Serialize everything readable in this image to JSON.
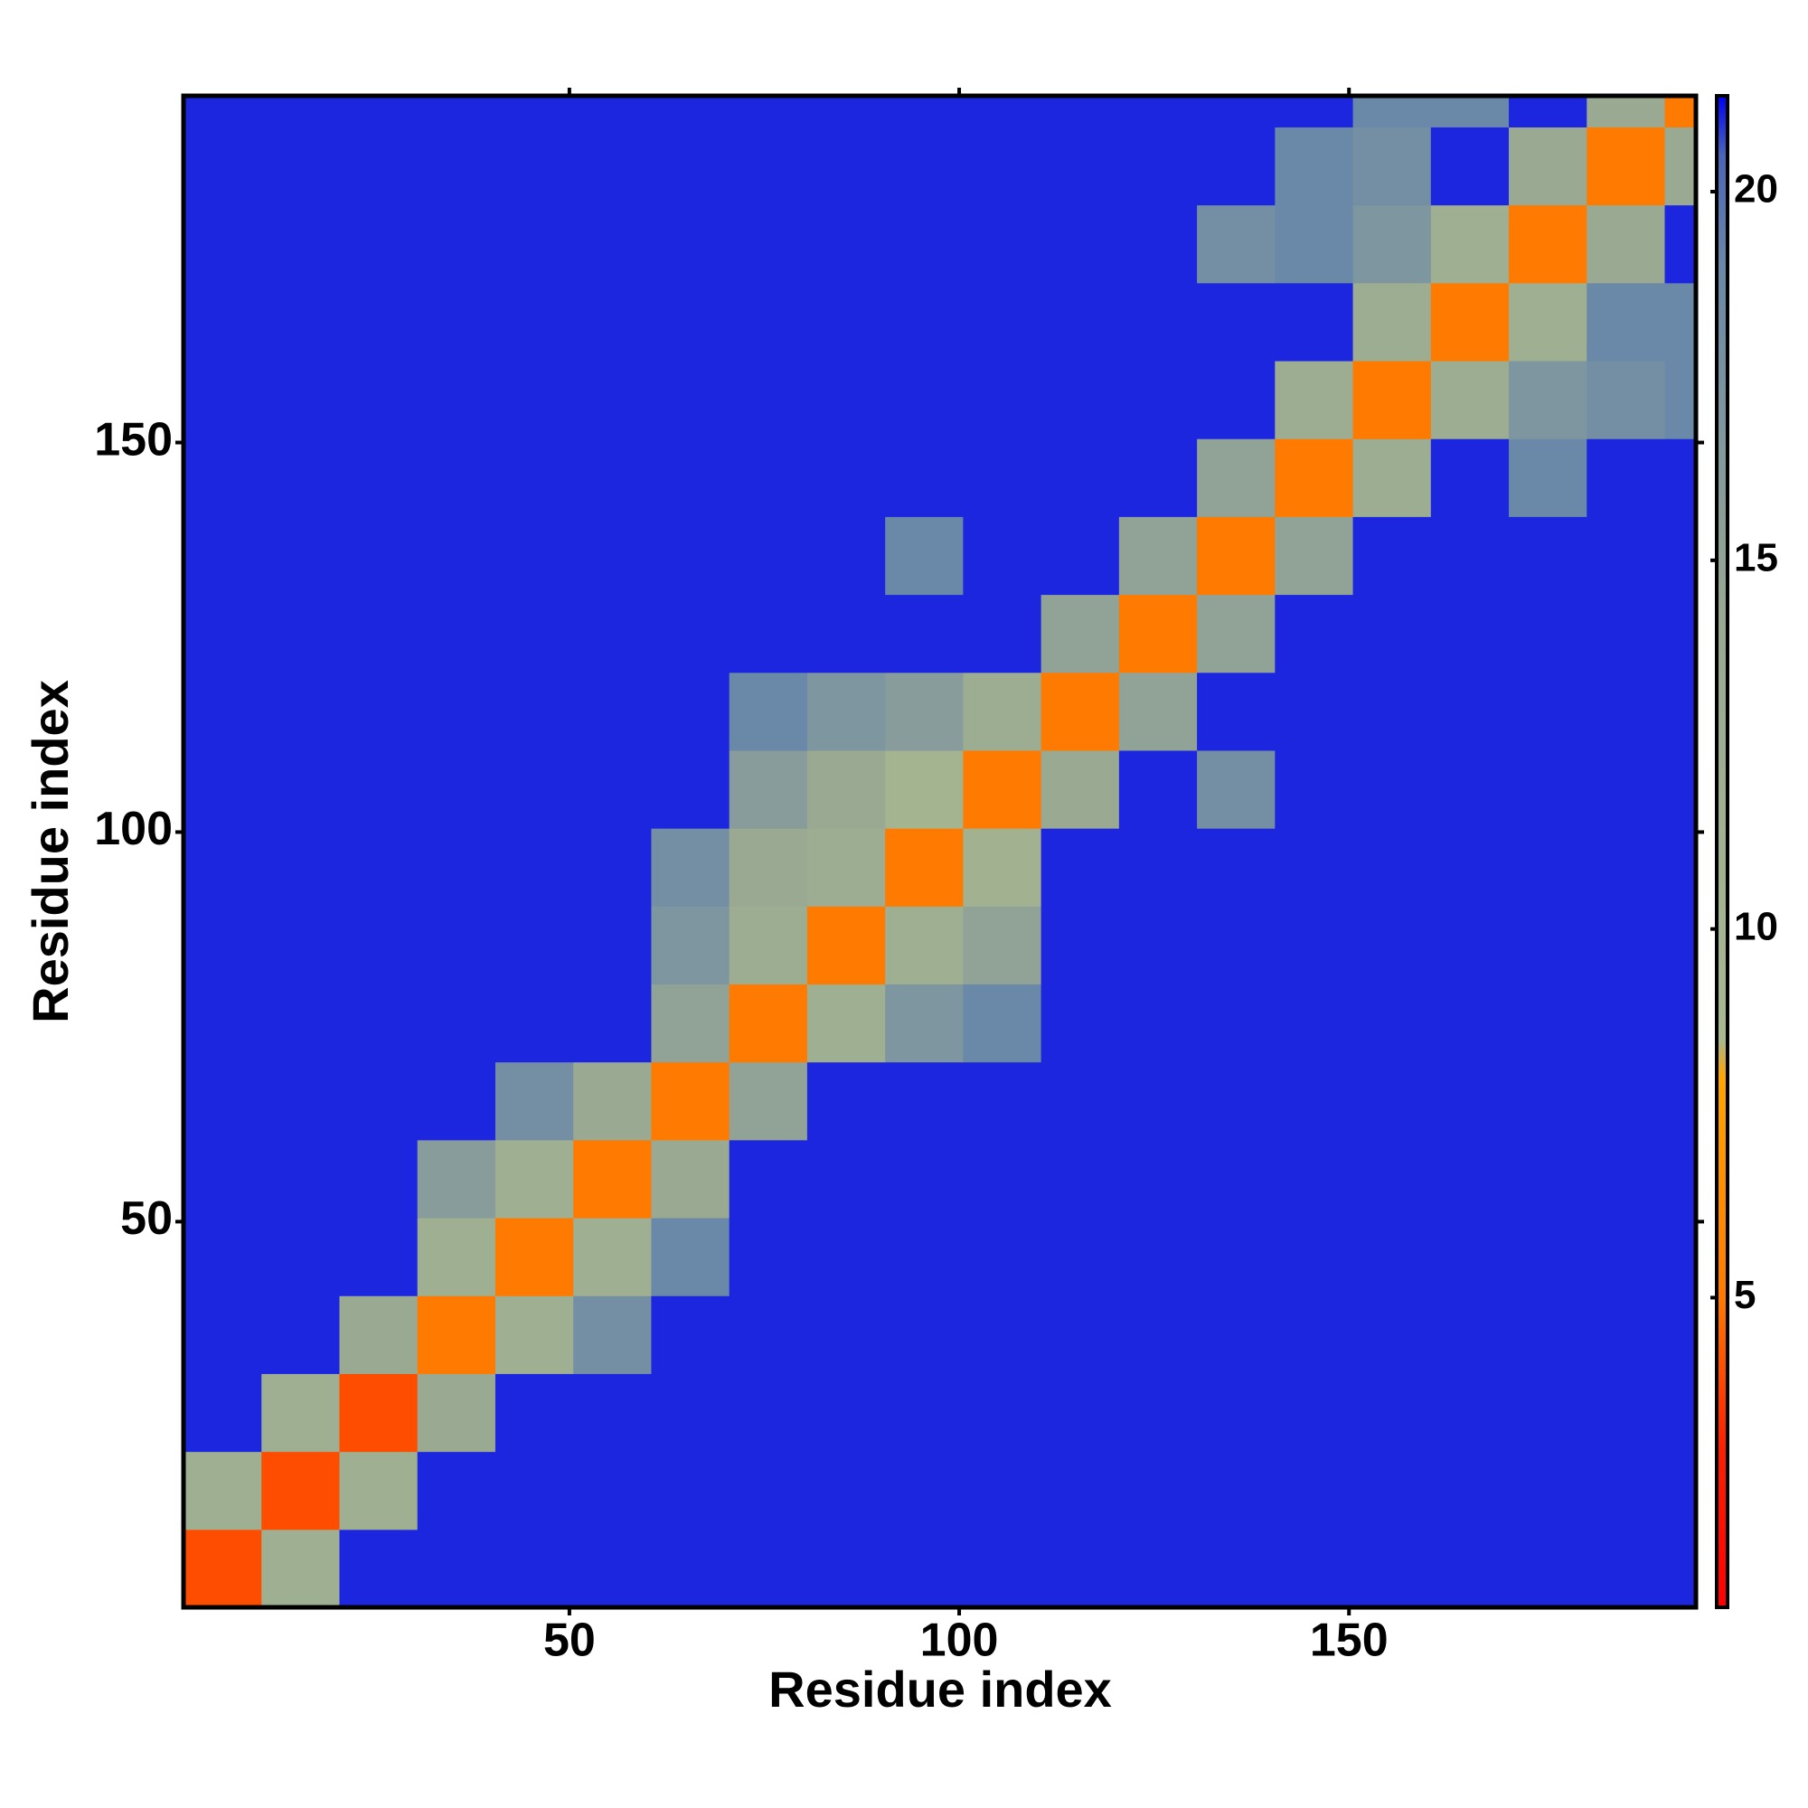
{
  "chart_data": {
    "type": "heatmap",
    "x_label": "Residue index",
    "y_label": "Residue index",
    "xbins": [
      0.5,
      10.5,
      20.5,
      30.5,
      40.5,
      50.5,
      60.5,
      70.5,
      80.5,
      90.5,
      100.5,
      110.5,
      120.5,
      130.5,
      140.5,
      150.5,
      160.5,
      170.5,
      180.5,
      190.5,
      194.5
    ],
    "ybins": [
      0.5,
      10.5,
      20.5,
      30.5,
      40.5,
      50.5,
      60.5,
      70.5,
      80.5,
      90.5,
      100.5,
      110.5,
      120.5,
      130.5,
      140.5,
      150.5,
      160.5,
      170.5,
      180.5,
      190.5,
      194.5
    ],
    "values": [
      [
        4,
        12,
        21,
        21,
        21,
        21,
        21,
        21,
        21,
        21,
        21,
        21,
        21,
        21,
        21,
        21,
        21,
        21,
        21,
        21
      ],
      [
        12,
        4,
        12,
        21,
        21,
        21,
        21,
        21,
        21,
        21,
        21,
        21,
        21,
        21,
        21,
        21,
        21,
        21,
        21,
        21
      ],
      [
        21,
        12,
        4,
        14,
        21,
        21,
        21,
        21,
        21,
        21,
        21,
        21,
        21,
        21,
        21,
        21,
        21,
        21,
        21,
        21
      ],
      [
        21,
        21,
        14,
        5,
        12,
        18,
        21,
        21,
        21,
        21,
        21,
        21,
        21,
        21,
        21,
        21,
        21,
        21,
        21,
        21
      ],
      [
        21,
        21,
        21,
        12,
        5,
        12,
        19,
        21,
        21,
        21,
        21,
        21,
        21,
        21,
        21,
        21,
        21,
        21,
        21,
        21
      ],
      [
        21,
        21,
        21,
        16,
        12,
        5,
        14,
        21,
        21,
        21,
        21,
        21,
        21,
        21,
        21,
        21,
        21,
        21,
        21,
        21
      ],
      [
        21,
        21,
        21,
        21,
        18,
        14,
        5,
        15,
        21,
        21,
        21,
        21,
        21,
        21,
        21,
        21,
        21,
        21,
        21,
        21
      ],
      [
        21,
        21,
        21,
        21,
        21,
        21,
        15,
        5,
        12,
        17,
        19,
        21,
        21,
        21,
        21,
        21,
        21,
        21,
        21,
        21
      ],
      [
        21,
        21,
        21,
        21,
        21,
        21,
        17,
        13,
        5,
        12,
        15,
        21,
        21,
        21,
        21,
        21,
        21,
        21,
        21,
        21
      ],
      [
        21,
        21,
        21,
        21,
        21,
        21,
        18,
        14,
        13,
        5,
        11,
        21,
        21,
        21,
        21,
        21,
        21,
        21,
        21,
        21
      ],
      [
        21,
        21,
        21,
        21,
        21,
        21,
        21,
        16,
        14,
        10,
        5,
        14,
        21,
        18,
        21,
        21,
        21,
        21,
        21,
        21
      ],
      [
        21,
        21,
        21,
        21,
        21,
        21,
        21,
        19,
        17,
        16,
        13,
        5,
        15,
        21,
        21,
        21,
        21,
        21,
        21,
        21
      ],
      [
        21,
        21,
        21,
        21,
        21,
        21,
        21,
        21,
        21,
        21,
        21,
        15,
        5,
        15,
        21,
        21,
        21,
        21,
        21,
        21
      ],
      [
        21,
        21,
        21,
        21,
        21,
        21,
        21,
        21,
        21,
        19,
        21,
        21,
        15,
        5,
        15,
        21,
        21,
        21,
        21,
        21
      ],
      [
        21,
        21,
        21,
        21,
        21,
        21,
        21,
        21,
        21,
        21,
        21,
        21,
        21,
        15,
        5,
        13,
        21,
        19,
        21,
        21
      ],
      [
        21,
        21,
        21,
        21,
        21,
        21,
        21,
        21,
        21,
        21,
        21,
        21,
        21,
        21,
        13,
        5,
        13,
        17,
        18,
        19
      ],
      [
        21,
        21,
        21,
        21,
        21,
        21,
        21,
        21,
        21,
        21,
        21,
        21,
        21,
        21,
        21,
        13,
        5,
        12,
        19,
        19
      ],
      [
        21,
        21,
        21,
        21,
        21,
        21,
        21,
        21,
        21,
        21,
        21,
        21,
        21,
        18,
        19,
        17,
        12,
        5,
        14,
        21
      ],
      [
        21,
        21,
        21,
        21,
        21,
        21,
        21,
        21,
        21,
        21,
        21,
        21,
        21,
        21,
        19,
        18,
        21,
        14,
        5,
        14
      ],
      [
        21,
        21,
        21,
        21,
        21,
        21,
        21,
        21,
        21,
        21,
        21,
        21,
        21,
        21,
        21,
        19,
        19,
        21,
        14,
        5
      ]
    ],
    "xlim": [
      0.5,
      194.5
    ],
    "ylim": [
      0.5,
      194.5
    ],
    "xticks": [
      50,
      100,
      150
    ],
    "yticks": [
      50,
      100,
      150
    ],
    "zlim": [
      0.8,
      21.3
    ],
    "zticks": [
      5,
      10,
      15,
      20
    ],
    "colorscale": [
      [
        0.8,
        "#ff0000"
      ],
      [
        3,
        "#ff2000"
      ],
      [
        5,
        "#ff7a00"
      ],
      [
        8,
        "#ffa500"
      ],
      [
        8.5,
        "#a8b890"
      ],
      [
        14,
        "#9aaa92"
      ],
      [
        19,
        "#6a88a8"
      ],
      [
        20.5,
        "#4a64b8"
      ],
      [
        21.3,
        "#0000f5"
      ]
    ],
    "grid": false
  }
}
